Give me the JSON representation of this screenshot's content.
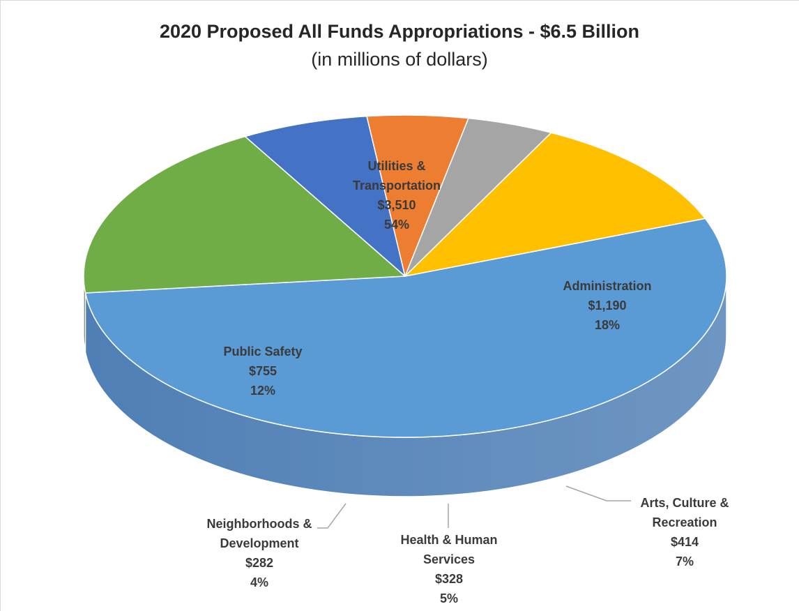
{
  "chart_data": {
    "type": "pie",
    "title": "2020 Proposed All Funds Appropriations - $6.5 Billion",
    "subtitle": "(in millions of dollars)",
    "categories": [
      "Utilities & Transportation",
      "Administration",
      "Arts, Culture & Recreation",
      "Health & Human Services",
      "Neighborhoods & Development",
      "Public Safety"
    ],
    "values": [
      3510,
      1190,
      414,
      328,
      282,
      755
    ],
    "percents": [
      "54%",
      "18%",
      "7%",
      "5%",
      "4%",
      "12%"
    ],
    "value_labels": [
      "$3,510",
      "$1,190",
      "$414",
      "$328",
      "$282",
      "$755"
    ],
    "label_lines": [
      [
        "Utilities &",
        "Transportation",
        "$3,510",
        "54%"
      ],
      [
        "Administration",
        "$1,190",
        "18%"
      ],
      [
        "Arts, Culture &",
        "Recreation",
        "$414",
        "7%"
      ],
      [
        "Health & Human",
        "Services",
        "$328",
        "5%"
      ],
      [
        "Neighborhoods &",
        "Development",
        "$282",
        "4%"
      ],
      [
        "Public Safety",
        "$755",
        "12%"
      ]
    ],
    "colors": [
      "#5b9bd5",
      "#70ad47",
      "#4472c4",
      "#ed7d31",
      "#a5a5a5",
      "#ffc000"
    ],
    "side_colors": [
      "#4f7fb5",
      "#2c461c",
      "#1b2b4e",
      "#7a3d16",
      "#606060",
      "#c48f00"
    ],
    "style": "3d-pie",
    "legend": "none"
  }
}
